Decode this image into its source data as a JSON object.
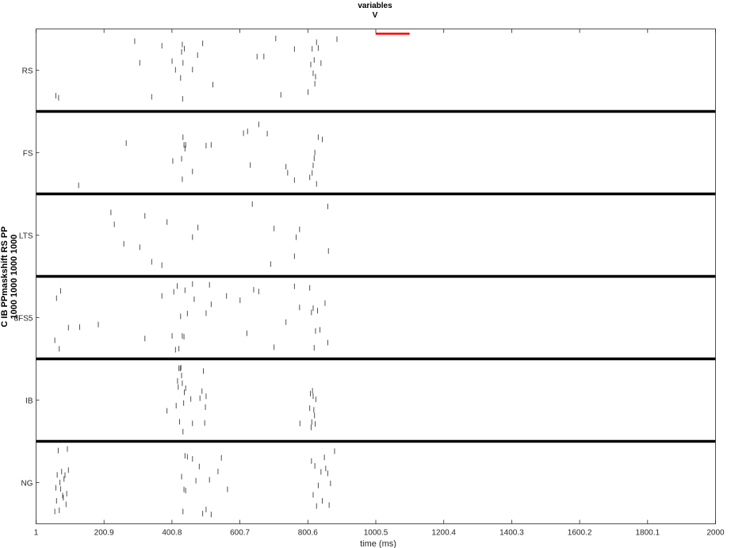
{
  "title": [
    "variables",
    "V"
  ],
  "chart_data": {
    "type": "scatter",
    "title": "variables V",
    "xlabel": "time (ms)",
    "ylabel": [
      "C IB PPmaskshift RS PP",
      "1000 1000 1000 1000"
    ],
    "xlim": [
      1,
      2000
    ],
    "xticks": [
      1,
      200.9,
      400.8,
      600.7,
      800.6,
      1000.5,
      1200.4,
      1400.3,
      1600.2,
      1800.1,
      2000
    ],
    "grid": false,
    "stimulus_bar": {
      "start": 1000,
      "end": 1100,
      "color": "#ff0000"
    },
    "populations": [
      {
        "name": "RS",
        "spike_times": [
          58,
          66,
          290,
          305,
          340,
          370,
          400,
          410,
          425,
          428,
          430,
          431,
          432,
          436,
          460,
          475,
          490,
          520,
          650,
          670,
          705,
          720,
          760,
          800,
          808,
          812,
          815,
          818,
          820,
          822,
          825,
          830,
          838,
          885
        ]
      },
      {
        "name": "FS",
        "spike_times": [
          125,
          265,
          402,
          428,
          430,
          432,
          435,
          438,
          440,
          460,
          500,
          515,
          610,
          622,
          630,
          655,
          680,
          735,
          740,
          760,
          805,
          812,
          815,
          818,
          820,
          825,
          830,
          842
        ]
      },
      {
        "name": "LTS",
        "spike_times": [
          220,
          230,
          258,
          305,
          320,
          340,
          370,
          385,
          460,
          476,
          636,
          690,
          700,
          760,
          765,
          775,
          858,
          860
        ]
      },
      {
        "name": "dFS5",
        "spike_times": [
          55,
          60,
          68,
          72,
          95,
          128,
          183,
          320,
          370,
          400,
          405,
          410,
          415,
          420,
          425,
          430,
          435,
          438,
          445,
          460,
          465,
          500,
          510,
          515,
          560,
          600,
          620,
          640,
          655,
          700,
          735,
          760,
          775,
          805,
          810,
          815,
          818,
          822,
          828,
          835,
          850,
          858
        ]
      },
      {
        "name": "IB",
        "spike_times": [
          385,
          412,
          416,
          418,
          420,
          422,
          424,
          426,
          428,
          430,
          432,
          434,
          436,
          440,
          455,
          460,
          482,
          488,
          492,
          496,
          498,
          500,
          776,
          805,
          807,
          809,
          811,
          813,
          815,
          817,
          819,
          821,
          823
        ]
      },
      {
        "name": "NG",
        "spike_times": [
          55,
          58,
          60,
          62,
          65,
          68,
          70,
          72,
          75,
          78,
          80,
          82,
          85,
          88,
          90,
          92,
          95,
          428,
          432,
          435,
          438,
          440,
          445,
          460,
          470,
          480,
          490,
          500,
          510,
          515,
          535,
          545,
          563,
          810,
          815,
          820,
          825,
          830,
          838,
          842,
          848,
          852,
          858,
          862,
          866,
          878
        ]
      }
    ]
  }
}
